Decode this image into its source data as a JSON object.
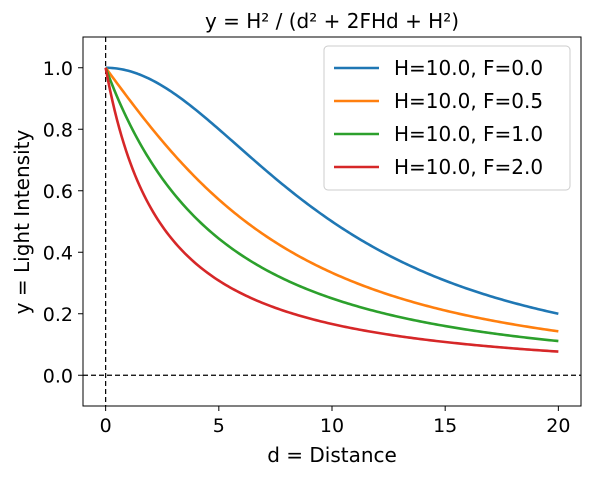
{
  "chart_data": {
    "type": "line",
    "title": "y = H² / (d² + 2FHd + H²)",
    "xlabel": "d = Distance",
    "ylabel": "y = Light Intensity",
    "xlim": [
      -1,
      21
    ],
    "ylim": [
      -0.1,
      1.1
    ],
    "xticks": [
      0,
      5,
      10,
      15,
      20
    ],
    "xtick_labels": [
      "0",
      "5",
      "10",
      "15",
      "20"
    ],
    "yticks": [
      0.0,
      0.2,
      0.4,
      0.6,
      0.8,
      1.0
    ],
    "ytick_labels": [
      "0.0",
      "0.2",
      "0.4",
      "0.6",
      "0.8",
      "1.0"
    ],
    "grid": false,
    "legend_position": "top-right",
    "reference_lines": [
      {
        "orientation": "horizontal",
        "value": 0,
        "style": "dashed",
        "color": "#000000"
      },
      {
        "orientation": "vertical",
        "value": 0,
        "style": "dashed",
        "color": "#000000"
      }
    ],
    "x": [
      0,
      1,
      2,
      3,
      4,
      5,
      6,
      7,
      8,
      9,
      10,
      11,
      12,
      13,
      14,
      15,
      16,
      17,
      18,
      19,
      20
    ],
    "series": [
      {
        "name": "H=10.0, F=0.0",
        "color": "#1f77b4",
        "values": [
          1.0,
          0.99,
          0.962,
          0.917,
          0.862,
          0.8,
          0.735,
          0.671,
          0.61,
          0.552,
          0.5,
          0.452,
          0.41,
          0.372,
          0.338,
          0.308,
          0.281,
          0.257,
          0.236,
          0.217,
          0.2
        ]
      },
      {
        "name": "H=10.0, F=0.5",
        "color": "#ff7f0e",
        "values": [
          1.0,
          0.901,
          0.806,
          0.719,
          0.641,
          0.571,
          0.51,
          0.457,
          0.41,
          0.369,
          0.333,
          0.302,
          0.274,
          0.25,
          0.228,
          0.209,
          0.192,
          0.177,
          0.164,
          0.152,
          0.143
        ]
      },
      {
        "name": "H=10.0, F=1.0",
        "color": "#2ca02c",
        "values": [
          1.0,
          0.826,
          0.694,
          0.592,
          0.51,
          0.444,
          0.391,
          0.346,
          0.309,
          0.277,
          0.25,
          0.227,
          0.207,
          0.189,
          0.174,
          0.16,
          0.148,
          0.137,
          0.128,
          0.119,
          0.111
        ]
      },
      {
        "name": "H=10.0, F=2.0",
        "color": "#d62728",
        "values": [
          1.0,
          0.704,
          0.532,
          0.422,
          0.347,
          0.292,
          0.251,
          0.219,
          0.194,
          0.173,
          0.156,
          0.142,
          0.129,
          0.119,
          0.109,
          0.101,
          0.094,
          0.088,
          0.082,
          0.077,
          0.073
        ]
      }
    ]
  }
}
